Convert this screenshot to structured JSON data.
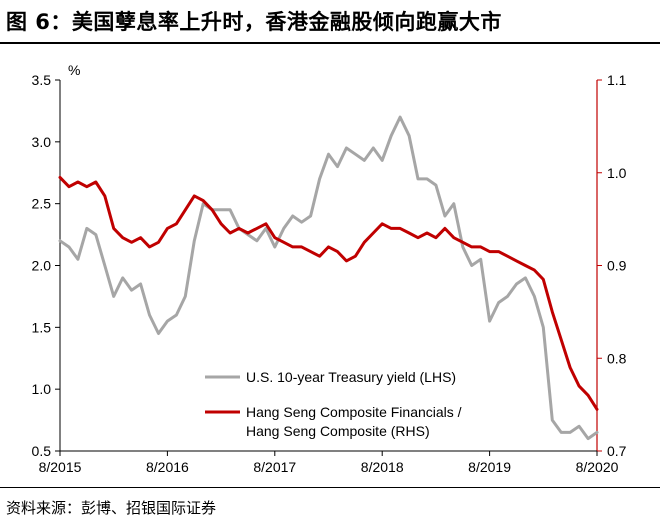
{
  "header": {
    "title": "图 6：美国孽息率上升时，香港金融股倾向跑赢大市"
  },
  "footer": {
    "source": "资料来源：彭博、招银国际证券"
  },
  "chart_data": {
    "type": "line",
    "title": "图 6：美国孽息率上升时，香港金融股倾向跑赢大市",
    "x_ticks": [
      "8/2015",
      "8/2016",
      "8/2017",
      "8/2018",
      "8/2019",
      "8/2020"
    ],
    "x_range": [
      "2015-08",
      "2020-08"
    ],
    "y_left": {
      "unit": "%",
      "min": 0.5,
      "max": 3.5,
      "ticks": [
        "0.5",
        "1.0",
        "1.5",
        "2.0",
        "2.5",
        "3.0",
        "3.5"
      ]
    },
    "y_right": {
      "min": 0.7,
      "max": 1.1,
      "ticks": [
        "0.7",
        "0.8",
        "0.9",
        "1.0",
        "1.1"
      ]
    },
    "legend_position": "bottom-right",
    "series": [
      {
        "name": "U.S. 10-year Treasury yield (LHS)",
        "axis": "left",
        "color": "#a6a6a6",
        "points": [
          [
            "2015-08-01",
            2.2
          ],
          [
            "2015-09-01",
            2.15
          ],
          [
            "2015-10-01",
            2.05
          ],
          [
            "2015-11-01",
            2.3
          ],
          [
            "2015-12-01",
            2.25
          ],
          [
            "2016-01-01",
            2.0
          ],
          [
            "2016-02-01",
            1.75
          ],
          [
            "2016-03-01",
            1.9
          ],
          [
            "2016-04-01",
            1.8
          ],
          [
            "2016-05-01",
            1.85
          ],
          [
            "2016-06-01",
            1.6
          ],
          [
            "2016-07-01",
            1.45
          ],
          [
            "2016-08-01",
            1.55
          ],
          [
            "2016-09-01",
            1.6
          ],
          [
            "2016-10-01",
            1.75
          ],
          [
            "2016-11-01",
            2.2
          ],
          [
            "2016-12-01",
            2.5
          ],
          [
            "2017-01-01",
            2.45
          ],
          [
            "2017-02-01",
            2.45
          ],
          [
            "2017-03-01",
            2.45
          ],
          [
            "2017-04-01",
            2.3
          ],
          [
            "2017-05-01",
            2.25
          ],
          [
            "2017-06-01",
            2.2
          ],
          [
            "2017-07-01",
            2.3
          ],
          [
            "2017-08-01",
            2.15
          ],
          [
            "2017-09-01",
            2.3
          ],
          [
            "2017-10-01",
            2.4
          ],
          [
            "2017-11-01",
            2.35
          ],
          [
            "2017-12-01",
            2.4
          ],
          [
            "2018-01-01",
            2.7
          ],
          [
            "2018-02-01",
            2.9
          ],
          [
            "2018-03-01",
            2.8
          ],
          [
            "2018-04-01",
            2.95
          ],
          [
            "2018-05-01",
            2.9
          ],
          [
            "2018-06-01",
            2.85
          ],
          [
            "2018-07-01",
            2.95
          ],
          [
            "2018-08-01",
            2.85
          ],
          [
            "2018-09-01",
            3.05
          ],
          [
            "2018-10-01",
            3.2
          ],
          [
            "2018-11-01",
            3.05
          ],
          [
            "2018-12-01",
            2.7
          ],
          [
            "2019-01-01",
            2.7
          ],
          [
            "2019-02-01",
            2.65
          ],
          [
            "2019-03-01",
            2.4
          ],
          [
            "2019-04-01",
            2.5
          ],
          [
            "2019-05-01",
            2.15
          ],
          [
            "2019-06-01",
            2.0
          ],
          [
            "2019-07-01",
            2.05
          ],
          [
            "2019-08-01",
            1.55
          ],
          [
            "2019-09-01",
            1.7
          ],
          [
            "2019-10-01",
            1.75
          ],
          [
            "2019-11-01",
            1.85
          ],
          [
            "2019-12-01",
            1.9
          ],
          [
            "2020-01-01",
            1.75
          ],
          [
            "2020-02-01",
            1.5
          ],
          [
            "2020-03-01",
            0.75
          ],
          [
            "2020-04-01",
            0.65
          ],
          [
            "2020-05-01",
            0.65
          ],
          [
            "2020-06-01",
            0.7
          ],
          [
            "2020-07-01",
            0.6
          ],
          [
            "2020-08-01",
            0.65
          ]
        ]
      },
      {
        "name": "Hang Seng Composite Financials / Hang Seng Composite (RHS)",
        "axis": "right",
        "color": "#c00000",
        "points": [
          [
            "2015-08-01",
            0.995
          ],
          [
            "2015-09-01",
            0.985
          ],
          [
            "2015-10-01",
            0.99
          ],
          [
            "2015-11-01",
            0.985
          ],
          [
            "2015-12-01",
            0.99
          ],
          [
            "2016-01-01",
            0.975
          ],
          [
            "2016-02-01",
            0.94
          ],
          [
            "2016-03-01",
            0.93
          ],
          [
            "2016-04-01",
            0.925
          ],
          [
            "2016-05-01",
            0.93
          ],
          [
            "2016-06-01",
            0.92
          ],
          [
            "2016-07-01",
            0.925
          ],
          [
            "2016-08-01",
            0.94
          ],
          [
            "2016-09-01",
            0.945
          ],
          [
            "2016-10-01",
            0.96
          ],
          [
            "2016-11-01",
            0.975
          ],
          [
            "2016-12-01",
            0.97
          ],
          [
            "2017-01-01",
            0.96
          ],
          [
            "2017-02-01",
            0.945
          ],
          [
            "2017-03-01",
            0.935
          ],
          [
            "2017-04-01",
            0.94
          ],
          [
            "2017-05-01",
            0.935
          ],
          [
            "2017-06-01",
            0.94
          ],
          [
            "2017-07-01",
            0.945
          ],
          [
            "2017-08-01",
            0.93
          ],
          [
            "2017-09-01",
            0.925
          ],
          [
            "2017-10-01",
            0.92
          ],
          [
            "2017-11-01",
            0.92
          ],
          [
            "2017-12-01",
            0.915
          ],
          [
            "2018-01-01",
            0.91
          ],
          [
            "2018-02-01",
            0.92
          ],
          [
            "2018-03-01",
            0.915
          ],
          [
            "2018-04-01",
            0.905
          ],
          [
            "2018-05-01",
            0.91
          ],
          [
            "2018-06-01",
            0.925
          ],
          [
            "2018-07-01",
            0.935
          ],
          [
            "2018-08-01",
            0.945
          ],
          [
            "2018-09-01",
            0.94
          ],
          [
            "2018-10-01",
            0.94
          ],
          [
            "2018-11-01",
            0.935
          ],
          [
            "2018-12-01",
            0.93
          ],
          [
            "2019-01-01",
            0.935
          ],
          [
            "2019-02-01",
            0.93
          ],
          [
            "2019-03-01",
            0.94
          ],
          [
            "2019-04-01",
            0.93
          ],
          [
            "2019-05-01",
            0.925
          ],
          [
            "2019-06-01",
            0.92
          ],
          [
            "2019-07-01",
            0.92
          ],
          [
            "2019-08-01",
            0.915
          ],
          [
            "2019-09-01",
            0.915
          ],
          [
            "2019-10-01",
            0.91
          ],
          [
            "2019-11-01",
            0.905
          ],
          [
            "2019-12-01",
            0.9
          ],
          [
            "2020-01-01",
            0.895
          ],
          [
            "2020-02-01",
            0.885
          ],
          [
            "2020-03-01",
            0.85
          ],
          [
            "2020-04-01",
            0.82
          ],
          [
            "2020-05-01",
            0.79
          ],
          [
            "2020-06-01",
            0.77
          ],
          [
            "2020-07-01",
            0.76
          ],
          [
            "2020-08-01",
            0.745
          ]
        ]
      }
    ]
  }
}
